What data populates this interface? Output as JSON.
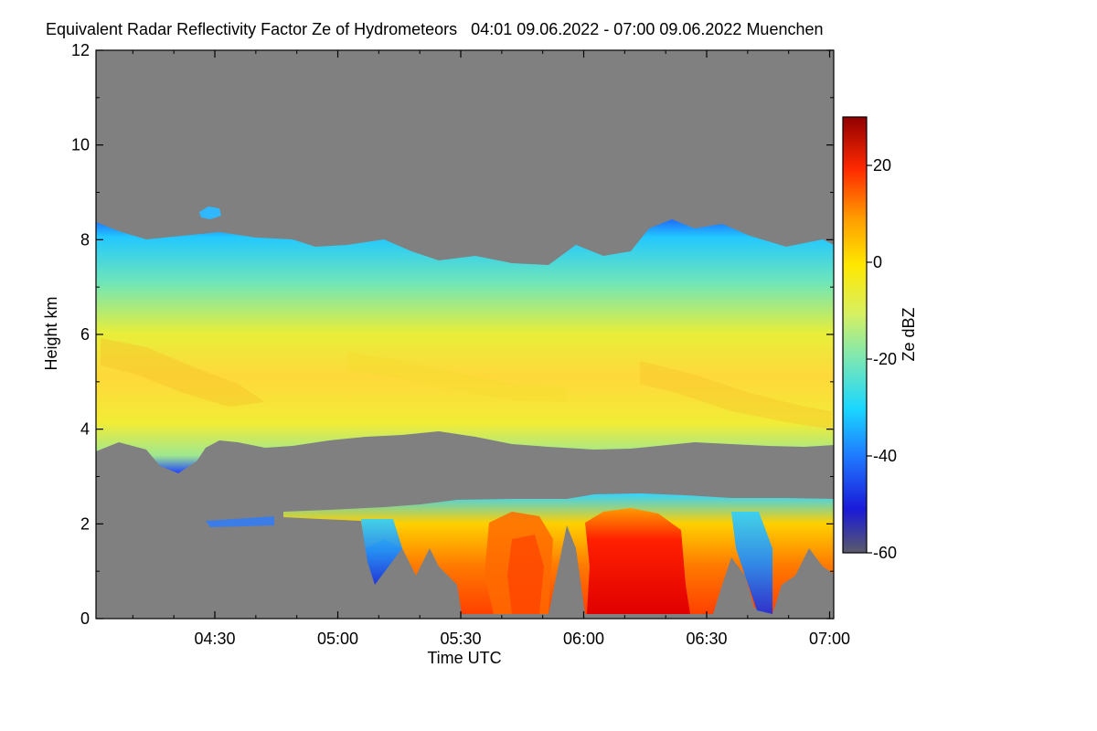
{
  "title": "Equivalent Radar Reflectivity Factor Ze of Hydrometeors   04:01 09.06.2022 - 07:00 09.06.2022 Muenchen",
  "chart_data": {
    "type": "heatmap",
    "title": "Equivalent Radar Reflectivity Factor Ze of Hydrometeors",
    "period": "04:01 09.06.2022 - 07:00 09.06.2022",
    "location": "Muenchen",
    "xlabel": "Time UTC",
    "ylabel": "Height km",
    "xlim_minutes": [
      241,
      421
    ],
    "ylim": [
      0,
      12
    ],
    "x_ticks": [
      {
        "label": "04:30",
        "value": 270
      },
      {
        "label": "05:00",
        "value": 300
      },
      {
        "label": "05:30",
        "value": 330
      },
      {
        "label": "06:00",
        "value": 360
      },
      {
        "label": "06:30",
        "value": 390
      },
      {
        "label": "07:00",
        "value": 420
      }
    ],
    "y_ticks": [
      {
        "label": "0",
        "value": 0
      },
      {
        "label": "2",
        "value": 2
      },
      {
        "label": "4",
        "value": 4
      },
      {
        "label": "6",
        "value": 6
      },
      {
        "label": "8",
        "value": 8
      },
      {
        "label": "10",
        "value": 10
      },
      {
        "label": "12",
        "value": 12
      }
    ],
    "colorbar": {
      "label": "Ze dBZ",
      "range": [
        -60,
        30
      ],
      "ticks": [
        {
          "label": "20",
          "value": 20
        },
        {
          "label": "0",
          "value": 0
        },
        {
          "label": "-20",
          "value": -20
        },
        {
          "label": "-40",
          "value": -40
        },
        {
          "label": "-60",
          "value": -60
        }
      ]
    },
    "features": [
      {
        "name": "ice-cloud-layer",
        "time_range": [
          241,
          421
        ],
        "base_km": [
          3.4,
          3.9
        ],
        "top_km": [
          7.2,
          8.4
        ],
        "ze_range_dbz": [
          -45,
          0
        ]
      },
      {
        "name": "rain-region",
        "time_range": [
          320,
          418
        ],
        "top_km": [
          1.8,
          2.7
        ],
        "ze_range_dbz": [
          -45,
          25
        ]
      },
      {
        "name": "heavy-rain-core",
        "time_range": [
          360,
          380
        ],
        "height_range_km": [
          0,
          2.4
        ],
        "ze_max_dbz": 25
      }
    ]
  }
}
